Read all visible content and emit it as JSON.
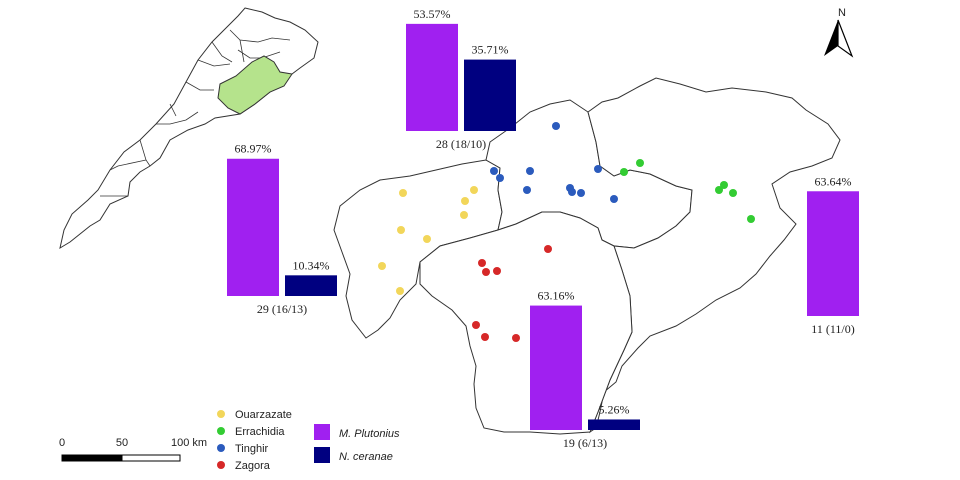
{
  "legend": {
    "regions": [
      {
        "name": "Ouarzazate",
        "color": "#f2d65a"
      },
      {
        "name": "Errachidia",
        "color": "#33cc33"
      },
      {
        "name": "Tinghir",
        "color": "#2b5bbd"
      },
      {
        "name": "Zagora",
        "color": "#d62828"
      }
    ],
    "species": [
      {
        "name": "M. Plutonius",
        "color": "#a020f0"
      },
      {
        "name": "N. ceranae",
        "color": "#000080"
      }
    ]
  },
  "scale_bar": {
    "labels": [
      "0",
      "50",
      "100 km"
    ]
  },
  "north_arrow": {
    "label": "N",
    "icon": "north-arrow-icon"
  },
  "chart_data": {
    "type": "bar",
    "series": [
      {
        "name": "M. Plutonius",
        "color": "#a020f0"
      },
      {
        "name": "N. ceranae",
        "color": "#000080"
      }
    ],
    "ylim": [
      0,
      100
    ],
    "groups": [
      {
        "region": "Ouarzazate",
        "plutonius_pct": 68.97,
        "ceranae_pct": 10.34,
        "plutonius_label": "68.97%",
        "ceranae_label": "10.34%",
        "count_label": "29 (16/13)"
      },
      {
        "region": "Tinghir",
        "plutonius_pct": 53.57,
        "ceranae_pct": 35.71,
        "plutonius_label": "53.57%",
        "ceranae_label": "35.71%",
        "count_label": "28 (18/10)"
      },
      {
        "region": "Errachidia",
        "plutonius_pct": 63.64,
        "ceranae_pct": null,
        "plutonius_label": "63.64%",
        "ceranae_label": null,
        "count_label": "11 (11/0)"
      },
      {
        "region": "Zagora",
        "plutonius_pct": 63.16,
        "ceranae_pct": 5.26,
        "plutonius_label": "63.16%",
        "ceranae_label": "5.26%",
        "count_label": "19 (6/13)"
      }
    ]
  }
}
